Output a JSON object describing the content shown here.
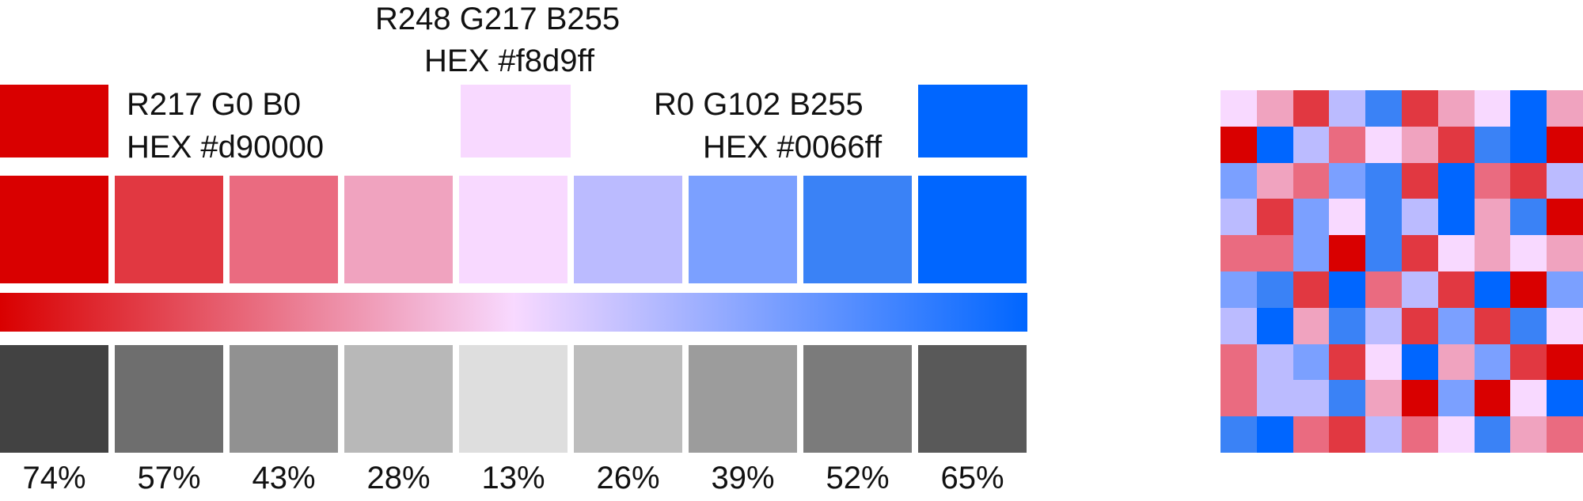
{
  "palette": {
    "left": {
      "color": "#d90000",
      "rgb": "R217  G0  B0",
      "hex": "HEX #d90000"
    },
    "mid": {
      "color": "#f8d9ff",
      "rgb": "R248  G217  B255",
      "hex": "HEX #f8d9ff"
    },
    "right": {
      "color": "#0066ff",
      "rgb": "R0  G102  B255",
      "hex": "HEX #0066ff"
    }
  },
  "steps": [
    {
      "color": "#d90000",
      "gray": "#424242",
      "pct": "74%"
    },
    {
      "color": "#e13841",
      "gray": "#6e6e6e",
      "pct": "57%"
    },
    {
      "color": "#ea6b80",
      "gray": "#919191",
      "pct": "43%"
    },
    {
      "color": "#f0a3bf",
      "gray": "#b8b8b8",
      "pct": "28%"
    },
    {
      "color": "#f8d9ff",
      "gray": "#dedede",
      "pct": "13%"
    },
    {
      "color": "#bbbbff",
      "gray": "#bdbdbd",
      "pct": "26%"
    },
    {
      "color": "#7ba0ff",
      "gray": "#9c9c9c",
      "pct": "39%"
    },
    {
      "color": "#3a82f6",
      "gray": "#7b7b7b",
      "pct": "52%"
    },
    {
      "color": "#0066ff",
      "gray": "#595959",
      "pct": "65%"
    }
  ],
  "gradient": [
    "#d90000",
    "#f8d9ff",
    "#0066ff"
  ],
  "heatmap": [
    [
      4,
      3,
      1,
      5,
      7,
      1,
      3,
      4,
      8,
      3
    ],
    [
      0,
      8,
      5,
      2,
      4,
      3,
      1,
      7,
      8,
      0
    ],
    [
      6,
      3,
      2,
      6,
      7,
      1,
      8,
      2,
      1,
      5
    ],
    [
      5,
      1,
      6,
      4,
      7,
      5,
      8,
      3,
      7,
      0
    ],
    [
      2,
      2,
      6,
      0,
      7,
      1,
      4,
      3,
      4,
      3
    ],
    [
      6,
      7,
      1,
      8,
      2,
      5,
      1,
      8,
      0,
      6
    ],
    [
      5,
      8,
      3,
      7,
      5,
      1,
      6,
      1,
      7,
      4
    ],
    [
      2,
      5,
      6,
      1,
      4,
      8,
      3,
      6,
      1,
      0
    ],
    [
      2,
      5,
      5,
      7,
      3,
      0,
      6,
      0,
      4,
      8
    ],
    [
      7,
      8,
      2,
      1,
      5,
      2,
      4,
      7,
      3,
      2
    ]
  ]
}
